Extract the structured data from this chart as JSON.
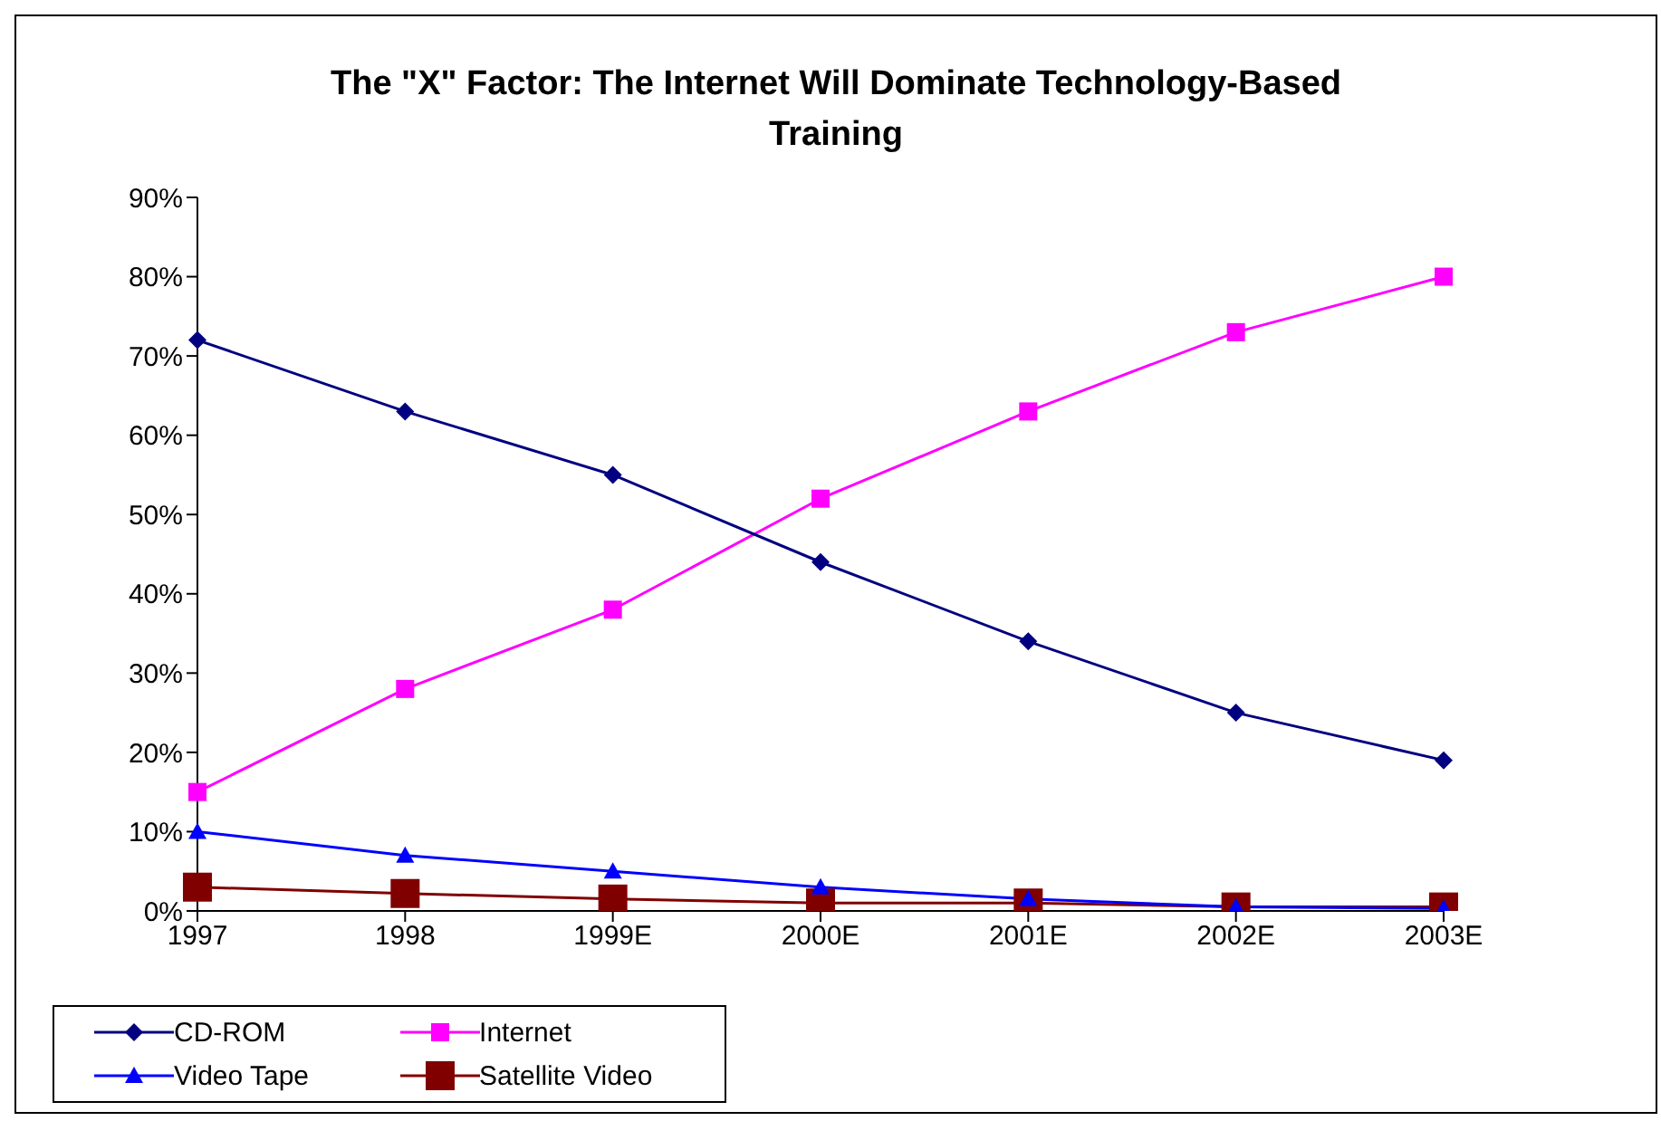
{
  "chart_data": {
    "type": "line",
    "title": "The \"X\" Factor: The Internet Will Dominate Technology-Based Training",
    "categories": [
      "1997",
      "1998",
      "1999E",
      "2000E",
      "2001E",
      "2002E",
      "2003E"
    ],
    "series": [
      {
        "name": "CD-ROM",
        "color": "#000080",
        "marker": "diamond",
        "values": [
          72,
          63,
          55,
          44,
          34,
          25,
          19
        ]
      },
      {
        "name": "Internet",
        "color": "#ff00ff",
        "marker": "square",
        "values": [
          15,
          28,
          38,
          52,
          63,
          73,
          80
        ]
      },
      {
        "name": "Video Tape",
        "color": "#0000ff",
        "marker": "triangle",
        "values": [
          10,
          7,
          5,
          3,
          1.5,
          0.5,
          0.3
        ]
      },
      {
        "name": "Satellite Video",
        "color": "#800000",
        "marker": "square",
        "values": [
          3,
          2.2,
          1.5,
          1,
          1,
          0.5,
          0.5
        ]
      }
    ],
    "ylim": [
      0,
      90
    ],
    "yticks": [
      {
        "value": 0,
        "label": "0%"
      },
      {
        "value": 10,
        "label": "10%"
      },
      {
        "value": 20,
        "label": "20%"
      },
      {
        "value": 30,
        "label": "30%"
      },
      {
        "value": 40,
        "label": "40%"
      },
      {
        "value": 50,
        "label": "50%"
      },
      {
        "value": 60,
        "label": "60%"
      },
      {
        "value": 70,
        "label": "70%"
      },
      {
        "value": 80,
        "label": "80%"
      },
      {
        "value": 90,
        "label": "90%"
      }
    ],
    "grid": false,
    "legend": "bottom",
    "line_style": "solid"
  }
}
